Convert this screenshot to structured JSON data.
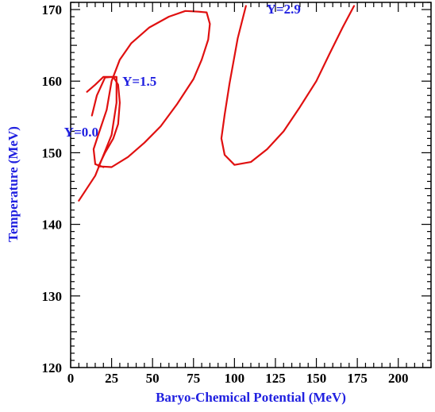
{
  "chart_data": {
    "type": "line",
    "title": "",
    "xlabel": "Baryo-Chemical Potential (MeV)",
    "ylabel": "Temperature (MeV)",
    "xlim": [
      0,
      220
    ],
    "ylim": [
      120,
      171
    ],
    "x_ticks": [
      0,
      25,
      50,
      75,
      100,
      125,
      150,
      175,
      200
    ],
    "y_ticks": [
      120,
      130,
      140,
      150,
      160,
      170
    ],
    "grid": false,
    "legend": "none",
    "line_color": "#e01010",
    "label_color": "#2020e0",
    "series": [
      {
        "name": "Y=0.0",
        "label_at": [
          6.5,
          152.7
        ],
        "points": [
          [
            5,
            143.3
          ],
          [
            15,
            146.8
          ],
          [
            25,
            152.5
          ],
          [
            28,
            157.0
          ],
          [
            28,
            160.6
          ],
          [
            20,
            160.6
          ],
          [
            15,
            159.5
          ],
          [
            10,
            158.5
          ]
        ]
      },
      {
        "name": "Y=1.5",
        "label_at": [
          42,
          159.8
        ],
        "points": [
          [
            13,
            155.2
          ],
          [
            16,
            158.0
          ],
          [
            21,
            160.5
          ],
          [
            26,
            160.6
          ],
          [
            29,
            159.5
          ],
          [
            30,
            157.0
          ],
          [
            29,
            154.0
          ],
          [
            26,
            152.0
          ],
          [
            21,
            150.0
          ],
          [
            17,
            148.1
          ],
          [
            25,
            148.0
          ],
          [
            35,
            149.4
          ],
          [
            45,
            151.4
          ],
          [
            55,
            153.7
          ],
          [
            65,
            156.8
          ],
          [
            75,
            160.3
          ],
          [
            80,
            163.0
          ],
          [
            84,
            165.8
          ],
          [
            85,
            168.0
          ],
          [
            83,
            169.6
          ],
          [
            78,
            169.7
          ],
          [
            70,
            169.8
          ],
          [
            60,
            169.0
          ],
          [
            48,
            167.5
          ],
          [
            37,
            165.3
          ],
          [
            30,
            163.0
          ],
          [
            25,
            160.0
          ],
          [
            22,
            156.0
          ],
          [
            17,
            152.6
          ],
          [
            14,
            150.5
          ],
          [
            15,
            148.4
          ],
          [
            20,
            148.0
          ]
        ]
      },
      {
        "name": "Y=2.9",
        "label_at": [
          130,
          169.9
        ],
        "points": [
          [
            107,
            170.5
          ],
          [
            102,
            166.0
          ],
          [
            97,
            159.7
          ],
          [
            94,
            155.3
          ],
          [
            92,
            152.0
          ],
          [
            94,
            149.7
          ],
          [
            100,
            148.3
          ],
          [
            110,
            148.7
          ],
          [
            120,
            150.5
          ],
          [
            130,
            153.0
          ],
          [
            140,
            156.4
          ],
          [
            150,
            160.0
          ],
          [
            158,
            163.8
          ],
          [
            166,
            167.5
          ],
          [
            173,
            170.5
          ]
        ]
      }
    ]
  }
}
